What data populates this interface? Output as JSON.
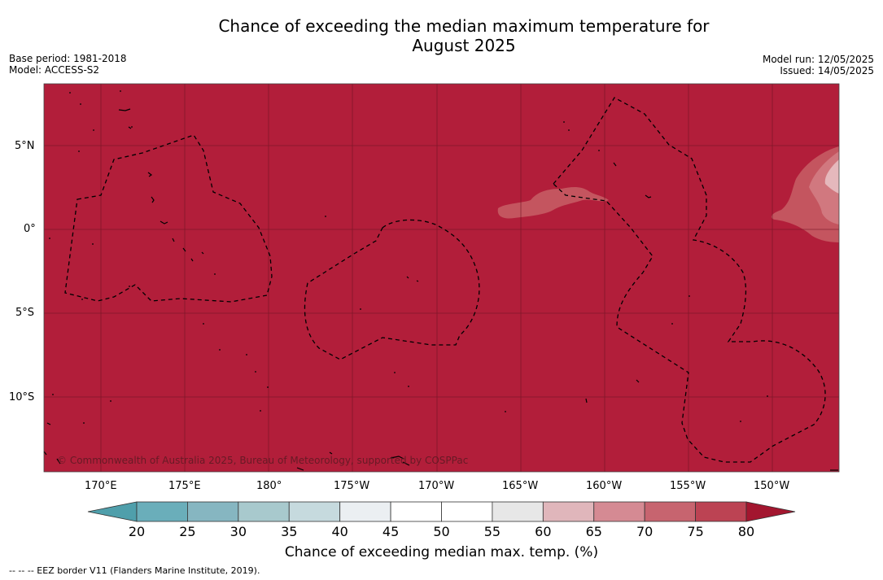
{
  "title": {
    "line1": "Chance of exceeding the median maximum temperature for",
    "line2": "August 2025"
  },
  "meta": {
    "base_period": "Base period: 1981-2018",
    "model": "Model: ACCESS-S2",
    "model_run": "Model run: 12/05/2025",
    "issued": "Issued: 14/05/2025"
  },
  "map": {
    "latitude_labels": [
      "5°N",
      "0°",
      "5°S",
      "10°S"
    ],
    "longitude_labels": [
      "170°E",
      "175°E",
      "180°",
      "175°W",
      "170°W",
      "165°W",
      "160°W",
      "155°W",
      "150°W"
    ],
    "credit": "© Commonwealth of Australia 2025, Bureau of Meteorology, supported by COSPPac",
    "background_color": "#b21e3a"
  },
  "colorbar": {
    "ticks": [
      "20",
      "25",
      "30",
      "35",
      "40",
      "45",
      "50",
      "55",
      "60",
      "65",
      "70",
      "75",
      "80"
    ],
    "colors": [
      "#6aaeba",
      "#86b6c1",
      "#a8c9cd",
      "#c6dade",
      "#ebeff2",
      "#ffffff",
      "#ffffff",
      "#e7e7e7",
      "#e0b6bb",
      "#d58a93",
      "#c7646f",
      "#bc4353"
    ],
    "low_extend_color": "#4f9fab",
    "high_extend_color": "#a3162f",
    "label": "Chance of exceeding median max. temp. (%)"
  },
  "footnote": "--  --  -- EEZ border V11 (Flanders Marine Institute, 2019)."
}
